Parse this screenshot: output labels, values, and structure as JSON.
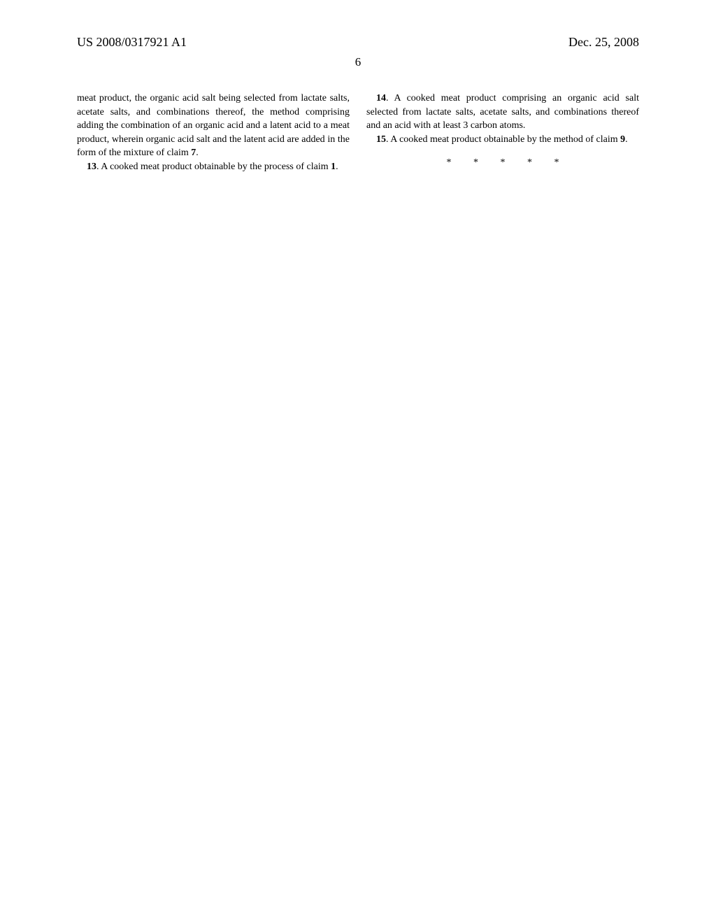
{
  "header": {
    "pub_number": "US 2008/0317921 A1",
    "pub_date": "Dec. 25, 2008"
  },
  "page_number": "6",
  "column_left": {
    "continuation_text": "meat product, the organic acid salt being selected from lactate salts, acetate salts, and combinations thereof, the method comprising adding the combination of an organic acid and a latent acid to a meat product, wherein organic acid salt and the latent acid are added in the form of the mixture of claim ",
    "continuation_ref": "7",
    "continuation_end": ".",
    "claim_13_num": "13",
    "claim_13_text": ". A cooked meat product obtainable by the process of claim ",
    "claim_13_ref": "1",
    "claim_13_end": "."
  },
  "column_right": {
    "claim_14_num": "14",
    "claim_14_text": ". A cooked meat product comprising an organic acid salt selected from lactate salts, acetate salts, and combinations thereof and an acid with at least 3 carbon atoms.",
    "claim_15_num": "15",
    "claim_15_text": ". A cooked meat product obtainable by the method of claim ",
    "claim_15_ref": "9",
    "claim_15_end": ".",
    "asterisks": "* * * * *"
  }
}
